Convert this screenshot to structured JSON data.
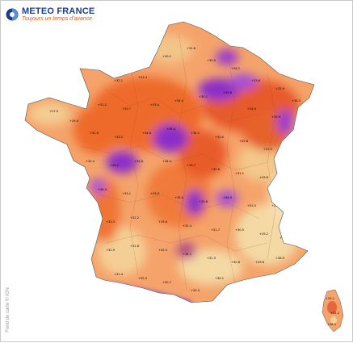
{
  "header": {
    "brand": "METEO FRANCE",
    "tagline": "Toujours un temps d'avance",
    "logo_icon": "meteo-france-logo-icon"
  },
  "credit": "Fond de carte © IGN",
  "colors": {
    "light": "#f4d9a4",
    "mid": "#f5a36a",
    "orange": "#ee6a2b",
    "red": "#de4b2e",
    "purple": "#8b2fc9",
    "violet": "#a64fd8"
  },
  "station_label_count_note": "Station values rendered as small numeric labels across the map"
}
